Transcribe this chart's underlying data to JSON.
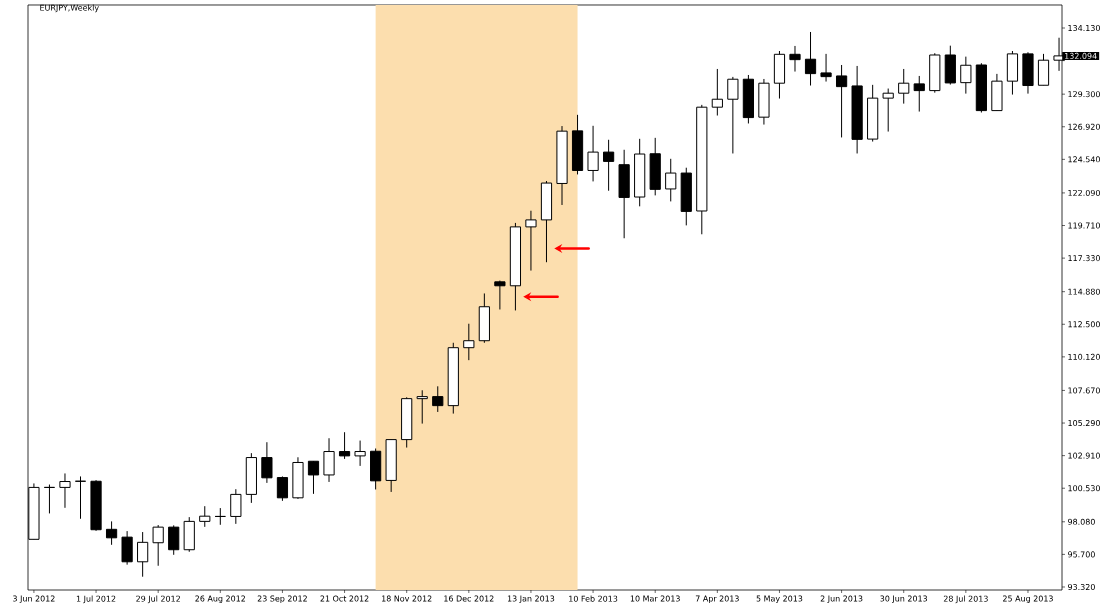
{
  "chart_data": {
    "type": "candlestick",
    "title": "EURJPY,Weekly",
    "x": [
      "2012-06-03",
      "2012-06-10",
      "2012-06-17",
      "2012-06-24",
      "2012-07-01",
      "2012-07-08",
      "2012-07-15",
      "2012-07-22",
      "2012-07-29",
      "2012-08-05",
      "2012-08-12",
      "2012-08-19",
      "2012-08-26",
      "2012-09-02",
      "2012-09-09",
      "2012-09-16",
      "2012-09-23",
      "2012-09-30",
      "2012-10-07",
      "2012-10-14",
      "2012-10-21",
      "2012-10-28",
      "2012-11-04",
      "2012-11-11",
      "2012-11-18",
      "2012-11-25",
      "2012-12-02",
      "2012-12-09",
      "2012-12-16",
      "2012-12-23",
      "2012-12-30",
      "2013-01-06",
      "2013-01-13",
      "2013-01-20",
      "2013-01-27",
      "2013-02-03",
      "2013-02-10",
      "2013-02-17",
      "2013-02-24",
      "2013-03-03",
      "2013-03-10",
      "2013-03-17",
      "2013-03-24",
      "2013-03-31",
      "2013-04-07",
      "2013-04-14",
      "2013-04-21",
      "2013-04-28",
      "2013-05-05",
      "2013-05-12",
      "2013-05-19",
      "2013-05-26",
      "2013-06-02",
      "2013-06-09",
      "2013-06-16",
      "2013-06-23",
      "2013-06-30",
      "2013-07-07",
      "2013-07-14",
      "2013-07-21",
      "2013-07-28",
      "2013-08-04",
      "2013-08-11",
      "2013-08-18",
      "2013-08-25",
      "2013-09-01",
      "2013-09-08"
    ],
    "ohlc": [
      [
        96.8,
        100.88,
        96.8,
        100.59
      ],
      [
        100.59,
        100.8,
        98.69,
        100.59
      ],
      [
        100.59,
        101.61,
        99.1,
        101.02
      ],
      [
        101.04,
        101.39,
        98.3,
        101.04
      ],
      [
        101.04,
        101.12,
        97.42,
        97.5
      ],
      [
        97.53,
        98.11,
        96.4,
        96.91
      ],
      [
        96.96,
        97.4,
        94.95,
        95.16
      ],
      [
        95.16,
        97.33,
        94.07,
        96.58
      ],
      [
        96.55,
        97.84,
        94.87,
        97.69
      ],
      [
        97.69,
        97.82,
        95.67,
        96.04
      ],
      [
        96.04,
        98.42,
        95.89,
        98.11
      ],
      [
        98.11,
        99.22,
        97.71,
        98.49
      ],
      [
        98.47,
        99.08,
        97.86,
        98.47
      ],
      [
        98.47,
        100.46,
        97.93,
        100.08
      ],
      [
        100.08,
        103.09,
        99.46,
        102.77
      ],
      [
        102.77,
        103.89,
        100.92,
        101.29
      ],
      [
        101.31,
        101.39,
        99.61,
        99.83
      ],
      [
        99.83,
        102.79,
        99.75,
        102.41
      ],
      [
        102.5,
        102.5,
        100.12,
        101.5
      ],
      [
        101.5,
        104.18,
        100.99,
        103.21
      ],
      [
        103.21,
        104.62,
        102.67,
        102.89
      ],
      [
        102.89,
        104.01,
        102.16,
        103.21
      ],
      [
        103.23,
        103.43,
        100.44,
        101.07
      ],
      [
        101.1,
        104.08,
        100.26,
        104.08
      ],
      [
        104.08,
        107.17,
        103.5,
        107.07
      ],
      [
        107.07,
        107.68,
        105.25,
        107.22
      ],
      [
        107.22,
        107.97,
        106.1,
        106.56
      ],
      [
        106.56,
        111.15,
        105.98,
        110.79
      ],
      [
        110.79,
        112.54,
        109.88,
        111.3
      ],
      [
        111.3,
        114.75,
        111.15,
        113.78
      ],
      [
        115.6,
        115.69,
        113.58,
        115.31
      ],
      [
        115.31,
        119.9,
        113.51,
        119.61
      ],
      [
        119.61,
        120.79,
        116.42,
        120.12
      ],
      [
        120.12,
        122.96,
        117.03,
        122.81
      ],
      [
        122.78,
        126.97,
        121.21,
        126.6
      ],
      [
        126.62,
        127.79,
        123.44,
        123.73
      ],
      [
        123.73,
        126.99,
        122.93,
        125.07
      ],
      [
        125.07,
        125.97,
        122.25,
        124.39
      ],
      [
        124.15,
        125.24,
        118.78,
        121.76
      ],
      [
        121.79,
        126.04,
        121.11,
        124.93
      ],
      [
        124.95,
        126.11,
        121.91,
        122.35
      ],
      [
        122.38,
        124.58,
        121.47,
        123.54
      ],
      [
        123.54,
        123.93,
        119.72,
        120.74
      ],
      [
        120.77,
        128.52,
        119.07,
        128.35
      ],
      [
        128.35,
        131.14,
        127.74,
        128.93
      ],
      [
        128.93,
        130.56,
        124.97,
        130.39
      ],
      [
        130.39,
        130.7,
        127.16,
        127.59
      ],
      [
        127.62,
        130.41,
        127.08,
        130.1
      ],
      [
        130.1,
        132.45,
        128.98,
        132.21
      ],
      [
        132.21,
        132.82,
        130.95,
        131.82
      ],
      [
        131.85,
        133.84,
        129.93,
        130.8
      ],
      [
        130.85,
        132.24,
        130.22,
        130.58
      ],
      [
        130.63,
        131.43,
        126.14,
        129.85
      ],
      [
        129.9,
        131.36,
        124.97,
        126.0
      ],
      [
        126.02,
        129.98,
        125.84,
        129.01
      ],
      [
        129.01,
        129.71,
        126.57,
        129.37
      ],
      [
        129.37,
        131.14,
        128.61,
        130.1
      ],
      [
        130.05,
        130.63,
        128.03,
        129.56
      ],
      [
        129.56,
        132.29,
        129.41,
        132.16
      ],
      [
        132.16,
        132.84,
        130.0,
        130.12
      ],
      [
        130.14,
        132.04,
        129.34,
        131.41
      ],
      [
        131.43,
        131.56,
        127.96,
        128.1
      ],
      [
        128.1,
        130.78,
        128.08,
        130.25
      ],
      [
        130.25,
        132.45,
        129.27,
        132.24
      ],
      [
        132.24,
        132.36,
        129.34,
        129.93
      ],
      [
        129.95,
        132.24,
        129.95,
        131.78
      ],
      [
        131.78,
        133.42,
        131.0,
        132.094
      ]
    ],
    "xlim": [
      "2012-05-31T08:00",
      "2013-09-09T08:00"
    ],
    "ylim": [
      93.1,
      135.81
    ],
    "xticks": [
      {
        "value": "2012-06-03",
        "label": "3 Jun 2012"
      },
      {
        "value": "2012-07-01",
        "label": "1 Jul 2012"
      },
      {
        "value": "2012-07-29",
        "label": "29 Jul 2012"
      },
      {
        "value": "2012-08-26",
        "label": "26 Aug 2012"
      },
      {
        "value": "2012-09-23",
        "label": "23 Sep 2012"
      },
      {
        "value": "2012-10-21",
        "label": "21 Oct 2012"
      },
      {
        "value": "2012-11-18",
        "label": "18 Nov 2012"
      },
      {
        "value": "2012-12-16",
        "label": "16 Dec 2012"
      },
      {
        "value": "2013-01-13",
        "label": "13 Jan 2013"
      },
      {
        "value": "2013-02-10",
        "label": "10 Feb 2013"
      },
      {
        "value": "2013-03-10",
        "label": "10 Mar 2013"
      },
      {
        "value": "2013-04-07",
        "label": "7 Apr 2013"
      },
      {
        "value": "2013-05-05",
        "label": "5 May 2013"
      },
      {
        "value": "2013-06-02",
        "label": "2 Jun 2013"
      },
      {
        "value": "2013-06-30",
        "label": "30 Jun 2013"
      },
      {
        "value": "2013-07-28",
        "label": "28 Jul 2013"
      },
      {
        "value": "2013-08-25",
        "label": "25 Aug 2013"
      }
    ],
    "yticks": [
      {
        "value": 93.32,
        "label": "93.320"
      },
      {
        "value": 95.7,
        "label": "95.700"
      },
      {
        "value": 98.08,
        "label": "98.080"
      },
      {
        "value": 100.53,
        "label": "100.530"
      },
      {
        "value": 102.91,
        "label": "102.910"
      },
      {
        "value": 105.29,
        "label": "105.290"
      },
      {
        "value": 107.67,
        "label": "107.670"
      },
      {
        "value": 110.12,
        "label": "110.120"
      },
      {
        "value": 112.5,
        "label": "112.500"
      },
      {
        "value": 114.88,
        "label": "114.880"
      },
      {
        "value": 117.33,
        "label": "117.330"
      },
      {
        "value": 119.71,
        "label": "119.710"
      },
      {
        "value": 122.09,
        "label": "122.090"
      },
      {
        "value": 124.54,
        "label": "124.540"
      },
      {
        "value": 126.92,
        "label": "126.920"
      },
      {
        "value": 129.3,
        "label": "129.300"
      },
      {
        "value": 131.75,
        "label": null
      },
      {
        "value": 134.13,
        "label": "134.130"
      }
    ],
    "bands": [
      {
        "axis": "x",
        "from": "2012-11-04",
        "to": "2013-02-03",
        "color": "#fcdeae"
      }
    ],
    "annotations": [
      {
        "text": "132.094",
        "x": "2013-09-08",
        "y": 132.094
      }
    ]
  }
}
